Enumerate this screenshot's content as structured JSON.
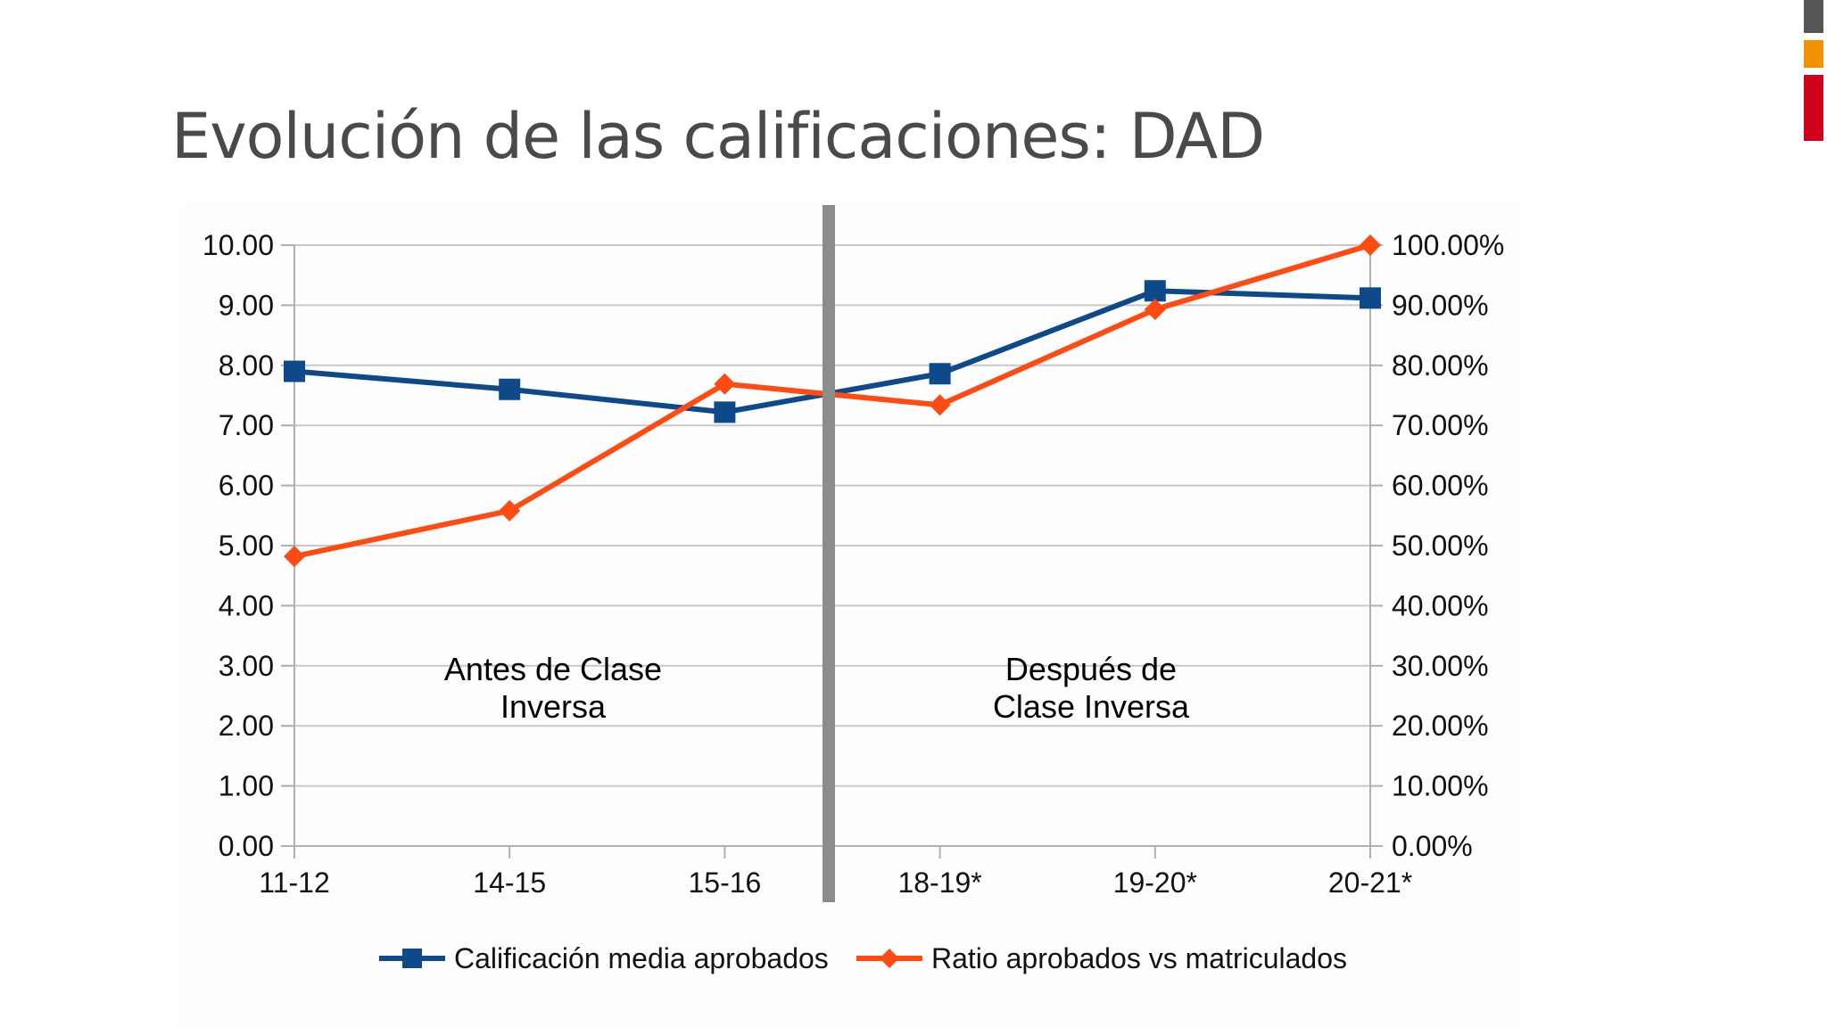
{
  "slide": {
    "title": "Evolución de las calificaciones: DAD",
    "deco_colors": [
      "#555555",
      "#f39200",
      "#d0021b"
    ]
  },
  "chart_data": {
    "type": "line",
    "categories": [
      "11-12",
      "14-15",
      "15-16",
      "18-19*",
      "19-20*",
      "20-21*"
    ],
    "y_left": {
      "range": [
        0,
        10
      ],
      "ticks": [
        "0.00",
        "1.00",
        "2.00",
        "3.00",
        "4.00",
        "5.00",
        "6.00",
        "7.00",
        "8.00",
        "9.00",
        "10.00"
      ]
    },
    "y_right": {
      "range": [
        0,
        100
      ],
      "ticks": [
        "0.00%",
        "10.00%",
        "20.00%",
        "30.00%",
        "40.00%",
        "50.00%",
        "60.00%",
        "70.00%",
        "80.00%",
        "90.00%",
        "100.00%"
      ]
    },
    "series": [
      {
        "name": "Calificación media aprobados",
        "axis": "left",
        "color": "#0e4a8a",
        "marker": "square",
        "values": [
          7.9,
          7.6,
          7.22,
          7.86,
          9.24,
          9.12
        ]
      },
      {
        "name": "Ratio aprobados vs matriculados",
        "axis": "right",
        "color": "#ff4a12",
        "marker": "diamond",
        "values": [
          48.2,
          55.8,
          76.9,
          73.4,
          89.3,
          100.0
        ]
      }
    ],
    "regions": [
      {
        "lines": [
          "Antes de Clase",
          "Inversa"
        ]
      },
      {
        "lines": [
          "Después de",
          "Clase Inversa"
        ]
      }
    ],
    "divider_color": "#8c8c8c",
    "grid": true,
    "legend": "bottom"
  }
}
